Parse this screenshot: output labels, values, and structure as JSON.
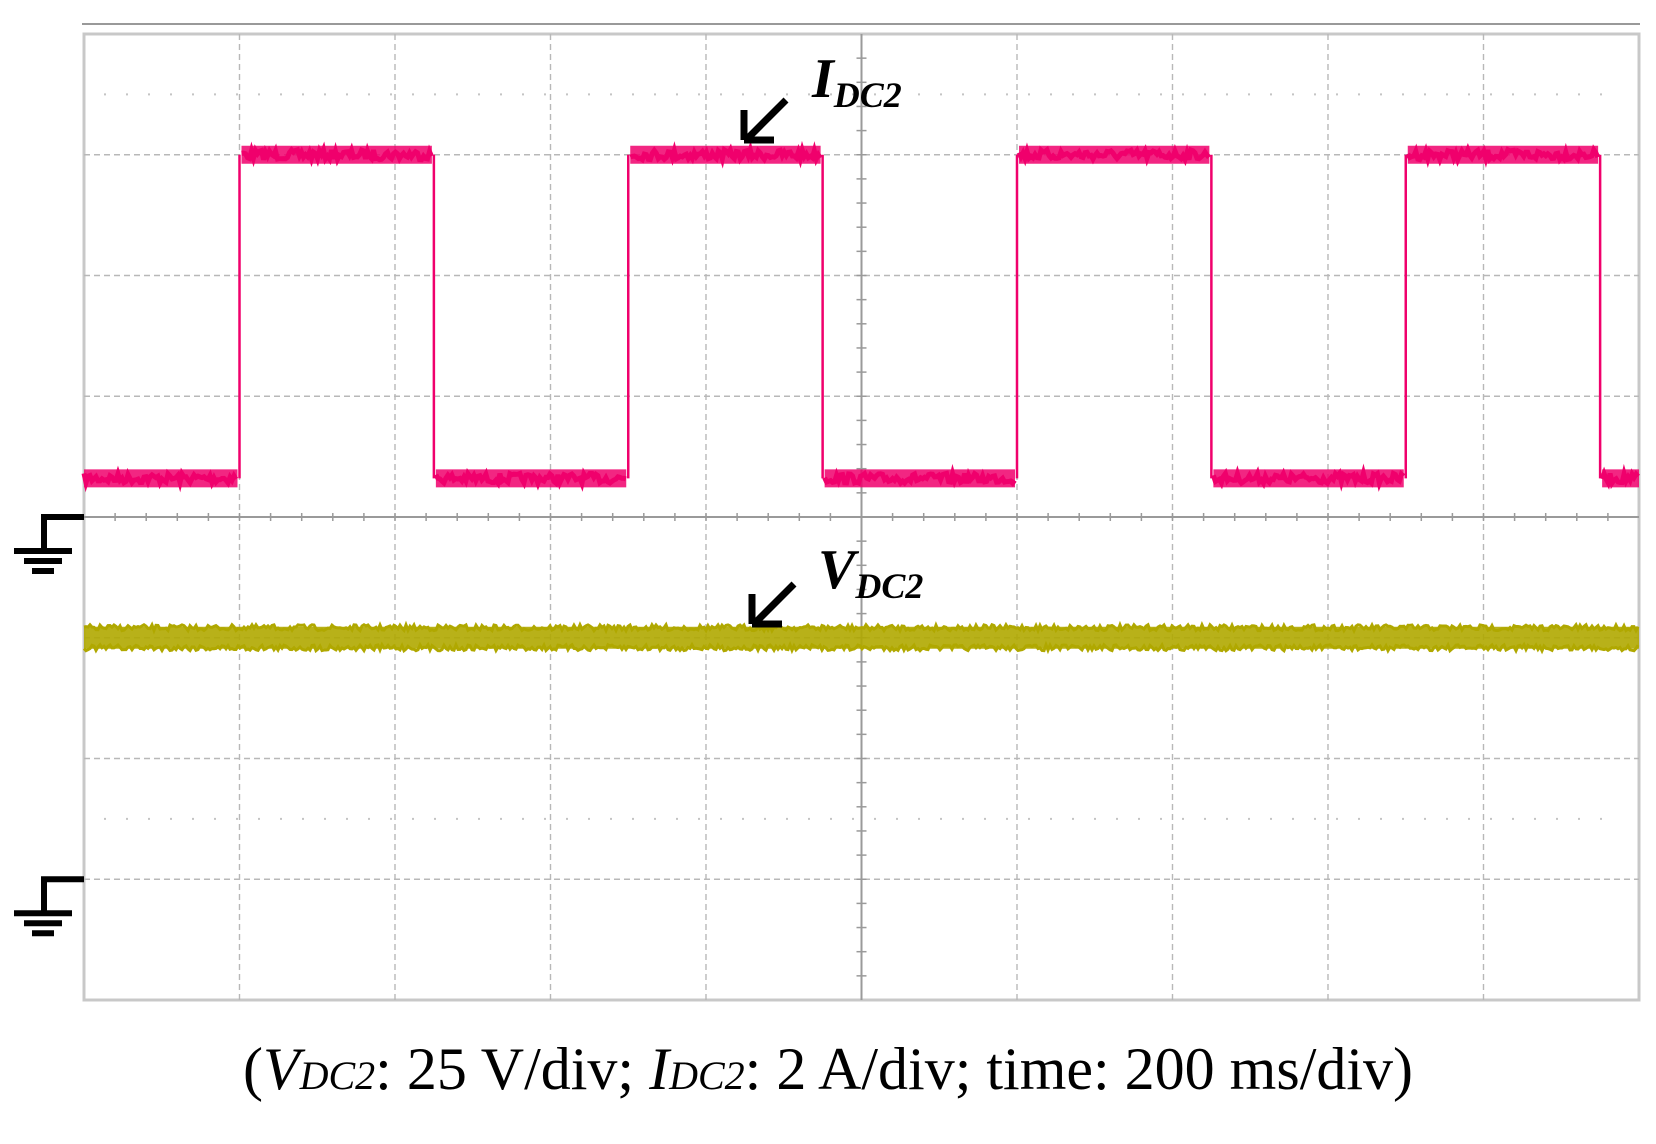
{
  "chart_data": {
    "type": "line",
    "x_divisions": 10,
    "y_divisions": 8,
    "x_unit": "200 ms/div",
    "series": [
      {
        "name": "IDC2",
        "label_main": "I",
        "label_sub": "DC2",
        "color": "#f0006c",
        "scale": "2 A/div",
        "ground_div_from_top": 4,
        "waveform": "square",
        "low_div_from_top": 3.68,
        "high_div_from_top": 1.0,
        "transitions_div": [
          1.0,
          2.25,
          3.5,
          4.75,
          6.0,
          7.25,
          8.5,
          9.75
        ],
        "starts": "low"
      },
      {
        "name": "VDC2",
        "label_main": "V",
        "label_sub": "DC2",
        "color": "#b0a800",
        "scale": "25 V/div",
        "ground_div_from_top": 7,
        "waveform": "dc",
        "level_div_from_top": 5.0
      }
    ],
    "grid": true,
    "legend": "none"
  },
  "caption": {
    "open": "(",
    "v_main": "V",
    "v_sub": "DC2",
    "v_rest": ": 25 V/div; ",
    "i_main": "I",
    "i_sub": "DC2",
    "i_rest": ": 2 A/div; time: 200 ms/div)"
  }
}
